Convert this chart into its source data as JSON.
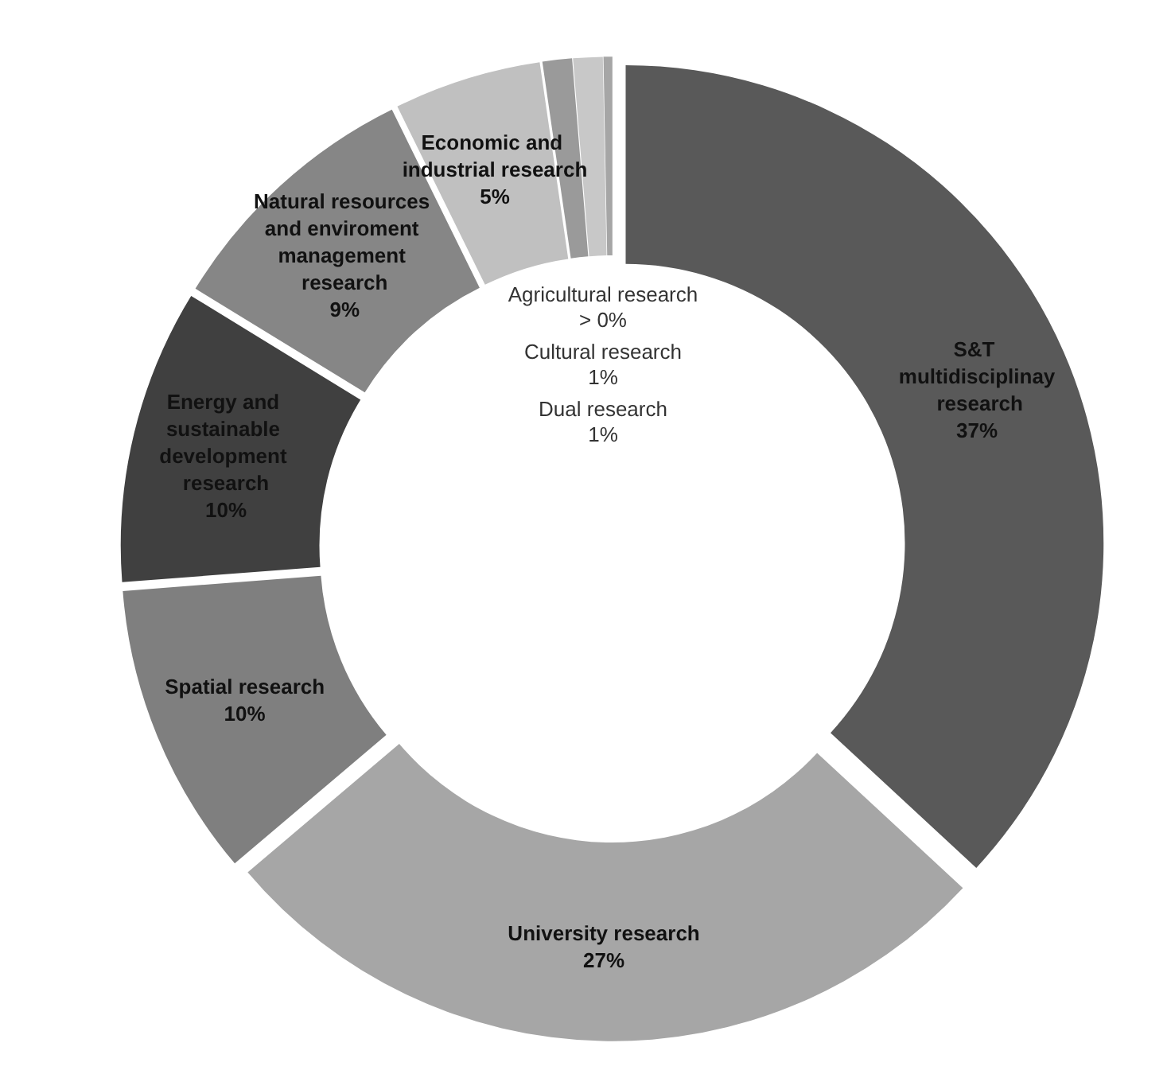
{
  "chart_data": {
    "type": "donut",
    "categories": [
      "S&T multidisciplinay research",
      "University research",
      "Spatial research",
      "Energy and sustainable development research",
      "Natural resources and enviroment management research",
      "Economic and industrial research",
      "Dual research",
      "Cultural research",
      "Agricultural research"
    ],
    "values": [
      37,
      27,
      10,
      10,
      9,
      5,
      1,
      1,
      0.3
    ],
    "value_labels": [
      "37%",
      "27%",
      "10%",
      "10%",
      "9%",
      "5%",
      "1%",
      "1%",
      "> 0%"
    ],
    "colors": [
      "#595959",
      "#a6a6a6",
      "#7f7f7f",
      "#404040",
      "#868686",
      "#c0c0c0",
      "#9a9a9a",
      "#c8c8c8",
      "#a6a6a6"
    ],
    "legend": false
  }
}
